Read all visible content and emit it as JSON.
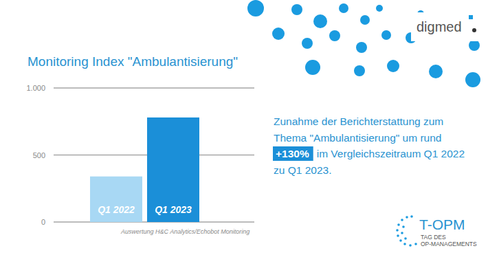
{
  "chart_data": {
    "type": "bar",
    "title": "Monitoring Index \"Ambulantisierung\"",
    "categories": [
      "Q1 2022",
      "Q1 2023"
    ],
    "values": [
      340,
      780
    ],
    "colors": [
      "#a8d8f4",
      "#1b8fd8"
    ],
    "ylim": [
      0,
      1000
    ],
    "yticks": [
      0,
      500,
      {
        "value": 1000,
        "label": "1.000"
      }
    ],
    "grid": true,
    "annotations": [
      "Auswertung H&C Analytics/Echobot Monitoring"
    ],
    "callout": {
      "before": [
        "Zunahme der Berichterstattung zum",
        "Thema \"Ambulantisierung\" um rund"
      ],
      "highlight": "+130%",
      "after": [
        "im Vergleichszeitraum Q1 2022",
        "zu Q1 2023."
      ]
    },
    "logos": [
      "digmed",
      "T-OPM",
      "TAG DES",
      "OP-MANAGEMENTS"
    ]
  }
}
